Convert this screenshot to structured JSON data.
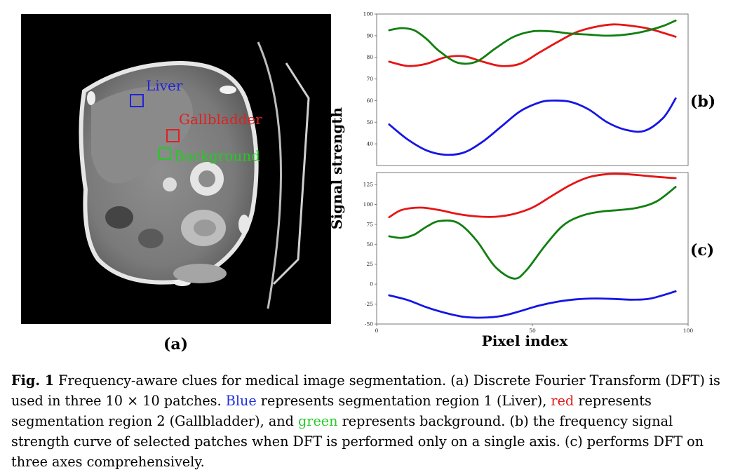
{
  "panel_a": {
    "label": "(a)",
    "rois": [
      {
        "name": "Liver",
        "color": "#2323d8"
      },
      {
        "name": "Gallbladder",
        "color": "#e02020"
      },
      {
        "name": "Background",
        "color": "#22cc22"
      }
    ]
  },
  "panel_b_label": "(b)",
  "panel_c_label": "(c)",
  "ylabel": "Signal strength",
  "xlabel": "Pixel index",
  "chart_data": [
    {
      "type": "line",
      "panel": "b",
      "xlim": [
        0,
        100
      ],
      "ylim": [
        30,
        100
      ],
      "yticks": [
        40,
        50,
        60,
        70,
        80,
        90,
        100
      ],
      "xticks": [],
      "series": [
        {
          "name": "Liver",
          "color": "#1515e6",
          "x": [
            4,
            10,
            16,
            22,
            28,
            34,
            40,
            46,
            52,
            56,
            62,
            68,
            74,
            80,
            86,
            92,
            96
          ],
          "y": [
            49,
            42,
            37,
            35,
            36,
            41,
            48,
            55,
            59,
            60,
            59.5,
            56,
            50,
            46.5,
            46,
            52,
            61
          ]
        },
        {
          "name": "Gallbladder",
          "color": "#e61515",
          "x": [
            4,
            10,
            16,
            22,
            28,
            34,
            40,
            46,
            52,
            58,
            64,
            70,
            76,
            82,
            88,
            96
          ],
          "y": [
            78,
            76,
            77,
            80,
            80.5,
            78,
            76,
            77,
            82,
            87,
            91.5,
            94,
            95.2,
            94.5,
            93,
            89.5
          ]
        },
        {
          "name": "Background",
          "color": "#117f11",
          "x": [
            4,
            8,
            12,
            16,
            20,
            26,
            32,
            38,
            44,
            50,
            56,
            62,
            68,
            74,
            80,
            86,
            92,
            96
          ],
          "y": [
            92.5,
            93.5,
            92.5,
            88.5,
            83,
            77.5,
            78,
            84,
            89.5,
            92,
            92,
            91,
            90.5,
            90,
            90.5,
            92,
            94.5,
            97
          ]
        }
      ]
    },
    {
      "type": "line",
      "panel": "c",
      "xlim": [
        0,
        100
      ],
      "ylim": [
        -50,
        140
      ],
      "yticks": [
        -50,
        -25,
        0,
        25,
        50,
        75,
        100,
        125
      ],
      "xticks": [
        0,
        50,
        100
      ],
      "series": [
        {
          "name": "Liver",
          "color": "#1515e6",
          "x": [
            4,
            10,
            16,
            22,
            28,
            34,
            40,
            46,
            52,
            58,
            64,
            70,
            76,
            82,
            88,
            96
          ],
          "y": [
            -14,
            -20,
            -29,
            -36,
            -41,
            -42,
            -40,
            -34,
            -27,
            -22,
            -19,
            -18,
            -18.5,
            -19.5,
            -18,
            -9
          ]
        },
        {
          "name": "Gallbladder",
          "color": "#e61515",
          "x": [
            4,
            8,
            14,
            20,
            26,
            32,
            38,
            44,
            50,
            56,
            62,
            68,
            74,
            80,
            86,
            92,
            96
          ],
          "y": [
            84,
            93,
            96,
            93,
            88,
            85,
            84.5,
            88,
            96,
            110,
            124,
            134,
            138,
            138,
            136,
            134,
            133
          ]
        },
        {
          "name": "Background",
          "color": "#117f11",
          "x": [
            4,
            8,
            12,
            16,
            20,
            26,
            32,
            38,
            44,
            48,
            54,
            60,
            66,
            72,
            78,
            84,
            90,
            96
          ],
          "y": [
            60,
            58,
            62,
            72,
            79,
            77,
            55,
            22,
            7,
            17,
            48,
            74,
            86,
            91,
            93,
            96,
            104,
            122
          ]
        }
      ]
    }
  ],
  "caption": {
    "fig_label": "Fig. 1",
    "part1": "  Frequency-aware clues for medical image segmentation. (a) Discrete Fourier Transform (DFT) is used in three 10 × 10 patches. ",
    "blue_word": "Blue",
    "part2": " represents segmentation region 1 (Liver), ",
    "red_word": "red",
    "part3": " represents segmentation region 2 (Gallbladder), and ",
    "green_word": "green",
    "part4": " represents background. (b) the frequency signal strength curve of selected patches when DFT is performed only on a single axis. (c) performs DFT on three axes comprehensively."
  }
}
